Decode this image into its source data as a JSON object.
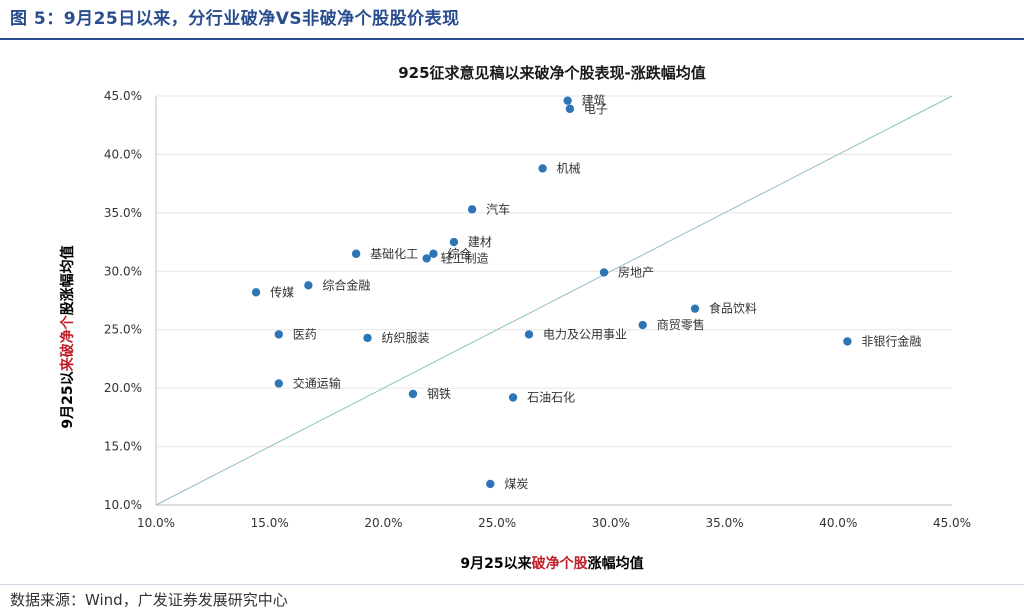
{
  "figure_title": "图 5：9月25日以来，分行业破净VS非破净个股股价表现",
  "source": "数据来源：Wind，广发证券发展研究中心",
  "chart_data": {
    "type": "scatter",
    "title": "925征求意见稿以来破净个股表现-涨跌幅均值",
    "xlabel": {
      "pre": "9月25以来",
      "hl": "破净个股",
      "post": "涨幅均值"
    },
    "ylabel": {
      "pre": "9月25以",
      "hl": "来破净个",
      "post": "股涨幅均值"
    },
    "xlim": [
      10,
      45
    ],
    "ylim": [
      10,
      45
    ],
    "x_ticks": [
      "10.0%",
      "15.0%",
      "20.0%",
      "25.0%",
      "30.0%",
      "35.0%",
      "40.0%",
      "45.0%"
    ],
    "y_ticks": [
      "10.0%",
      "15.0%",
      "20.0%",
      "25.0%",
      "30.0%",
      "35.0%",
      "40.0%",
      "45.0%"
    ],
    "diagonal": true,
    "grid": true,
    "point_color": "#2e75b6",
    "line_color": "#8fbfc4",
    "highlight_color": "#c0202a",
    "points": [
      {
        "label": "建筑",
        "x": 28.1,
        "y": 44.6
      },
      {
        "label": "电子",
        "x": 28.2,
        "y": 43.9
      },
      {
        "label": "机械",
        "x": 27.0,
        "y": 38.8
      },
      {
        "label": "汽车",
        "x": 23.9,
        "y": 35.3
      },
      {
        "label": "建材",
        "x": 23.1,
        "y": 32.5
      },
      {
        "label": "综合",
        "x": 22.2,
        "y": 31.5
      },
      {
        "label": "基础化工",
        "x": 18.8,
        "y": 31.5
      },
      {
        "label": "轻工制造",
        "x": 21.9,
        "y": 31.1
      },
      {
        "label": "房地产",
        "x": 29.7,
        "y": 29.9
      },
      {
        "label": "综合金融",
        "x": 16.7,
        "y": 28.8
      },
      {
        "label": "传媒",
        "x": 14.4,
        "y": 28.2
      },
      {
        "label": "食品饮料",
        "x": 33.7,
        "y": 26.8
      },
      {
        "label": "商贸零售",
        "x": 31.4,
        "y": 25.4
      },
      {
        "label": "医药",
        "x": 15.4,
        "y": 24.6
      },
      {
        "label": "电力及公用事业",
        "x": 26.4,
        "y": 24.6
      },
      {
        "label": "纺织服装",
        "x": 19.3,
        "y": 24.3
      },
      {
        "label": "非银行金融",
        "x": 40.4,
        "y": 24.0
      },
      {
        "label": "交通运输",
        "x": 15.4,
        "y": 20.4
      },
      {
        "label": "钢铁",
        "x": 21.3,
        "y": 19.5
      },
      {
        "label": "石油石化",
        "x": 25.7,
        "y": 19.2
      },
      {
        "label": "煤炭",
        "x": 24.7,
        "y": 11.8
      }
    ]
  }
}
